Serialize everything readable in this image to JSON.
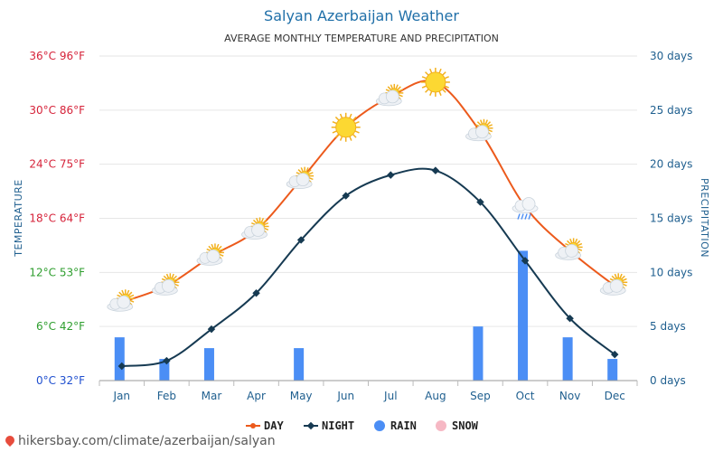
{
  "chart_data": {
    "type": "line",
    "title": "Salyan Azerbaijan Weather",
    "subtitle": "AVERAGE MONTHLY TEMPERATURE AND PRECIPITATION",
    "ylabel_left": "TEMPERATURE",
    "ylabel_right": "PRECIPITATION",
    "categories": [
      "Jan",
      "Feb",
      "Mar",
      "Apr",
      "May",
      "Jun",
      "Jul",
      "Aug",
      "Sep",
      "Oct",
      "Nov",
      "Dec"
    ],
    "y_left_ticks": [
      "0°C 32°F",
      "6°C 42°F",
      "12°C 53°F",
      "18°C 64°F",
      "24°C 75°F",
      "30°C 86°F",
      "36°C 96°F"
    ],
    "y_left_tick_colors": [
      "#1f4fcf",
      "#2e9e2e",
      "#2e9e2e",
      "#d6233a",
      "#d6233a",
      "#d6233a",
      "#d6233a"
    ],
    "y_right_ticks": [
      "0 days",
      "5 days",
      "10 days",
      "15 days",
      "20 days",
      "25 days",
      "30 days"
    ],
    "ylim_left": [
      0,
      36
    ],
    "ylim_right": [
      0,
      30
    ],
    "series": [
      {
        "name": "DAY",
        "color": "#ec5a1c",
        "values": [
          8.7,
          10.5,
          13.8,
          16.7,
          22.3,
          28.1,
          31.5,
          33.1,
          27.6,
          19.3,
          14.4,
          10.5
        ]
      },
      {
        "name": "NIGHT",
        "color": "#163a52",
        "values": [
          1.6,
          2.2,
          5.7,
          9.7,
          15.6,
          20.5,
          22.8,
          23.3,
          19.8,
          13.3,
          6.9,
          2.9
        ]
      },
      {
        "name": "RAIN",
        "color": "#4b8ef5",
        "values": [
          4,
          2,
          3,
          0,
          3,
          0,
          0,
          0,
          5,
          12,
          4,
          2
        ]
      },
      {
        "name": "SNOW",
        "color": "#f6b8c4",
        "values": [
          0,
          0,
          0,
          0,
          0,
          0,
          0,
          0,
          0,
          0,
          0,
          0
        ]
      }
    ],
    "weather_icons": [
      "partly-cloudy",
      "partly-cloudy",
      "partly-cloudy",
      "partly-cloudy",
      "partly-cloudy",
      "sunny",
      "partly-cloudy",
      "sunny",
      "partly-cloudy",
      "rain-cloud",
      "partly-cloudy",
      "partly-cloudy"
    ],
    "grid": true,
    "legend": "bottom-center"
  },
  "source_url": "hikersbay.com/climate/azerbaijan/salyan"
}
